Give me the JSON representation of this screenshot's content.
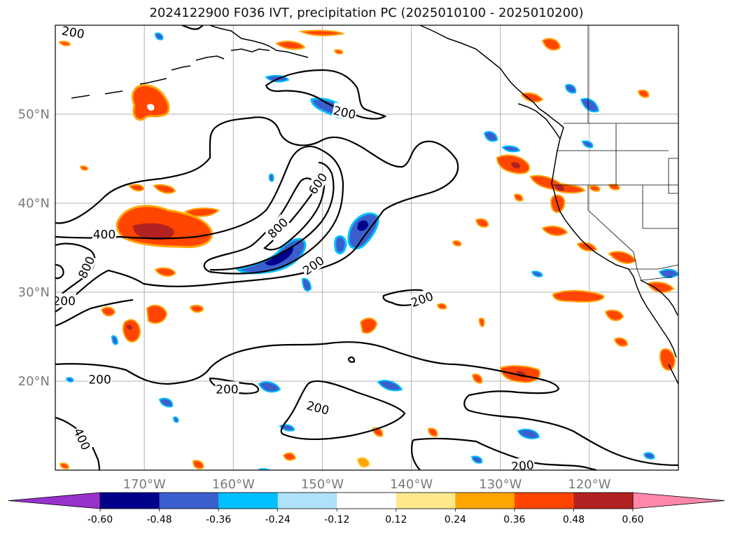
{
  "title": "2024122900 F036 IVT, precipitation PC (2025010100 - 2025010200)",
  "map": {
    "lon_range": [
      -180,
      -110
    ],
    "lat_range": [
      10,
      60
    ],
    "lat_ticks": [
      {
        "value": 50,
        "label": "50°N"
      },
      {
        "value": 40,
        "label": "40°N"
      },
      {
        "value": 30,
        "label": "30°N"
      },
      {
        "value": 20,
        "label": "20°N"
      }
    ],
    "lon_ticks": [
      {
        "value": -170,
        "label": "170°W"
      },
      {
        "value": -160,
        "label": "160°W"
      },
      {
        "value": -150,
        "label": "150°W"
      },
      {
        "value": -140,
        "label": "140°W"
      },
      {
        "value": -130,
        "label": "130°W"
      },
      {
        "value": -120,
        "label": "120°W"
      }
    ],
    "contour_labels": [
      {
        "text": "200",
        "lon": -178.0,
        "lat": 59.2,
        "rotate": 10
      },
      {
        "text": "200",
        "lon": -147.5,
        "lat": 50.2,
        "rotate": 12
      },
      {
        "text": "600",
        "lon": -150.5,
        "lat": 42.2,
        "rotate": -55
      },
      {
        "text": "800",
        "lon": -155.0,
        "lat": 37.2,
        "rotate": -45
      },
      {
        "text": "400",
        "lon": -174.5,
        "lat": 36.5,
        "rotate": 0
      },
      {
        "text": "800",
        "lon": -176.5,
        "lat": 32.8,
        "rotate": -65
      },
      {
        "text": "200",
        "lon": -151.0,
        "lat": 33.0,
        "rotate": -35
      },
      {
        "text": "200",
        "lon": -179.0,
        "lat": 29.0,
        "rotate": 0
      },
      {
        "text": "200",
        "lon": -138.8,
        "lat": 29.2,
        "rotate": -20
      },
      {
        "text": "200",
        "lon": -175.0,
        "lat": 20.2,
        "rotate": 0
      },
      {
        "text": "200",
        "lon": -160.7,
        "lat": 19.1,
        "rotate": 0
      },
      {
        "text": "200",
        "lon": -150.5,
        "lat": 17.0,
        "rotate": 15
      },
      {
        "text": "400",
        "lon": -177.0,
        "lat": 13.5,
        "rotate": 65
      },
      {
        "text": "200",
        "lon": -127.5,
        "lat": 10.5,
        "rotate": -5
      }
    ]
  },
  "colorbar": {
    "levels": [
      "-0.60",
      "-0.48",
      "-0.36",
      "-0.24",
      "-0.12",
      "0.12",
      "0.24",
      "0.36",
      "0.48",
      "0.60"
    ],
    "colors": [
      "#9932cc",
      "#00008b",
      "#3a5fcd",
      "#00bfff",
      "#afe1fa",
      "#ffffff",
      "#ffe88c",
      "#ffa500",
      "#ff4500",
      "#b22222",
      "#ff88aa"
    ]
  }
}
